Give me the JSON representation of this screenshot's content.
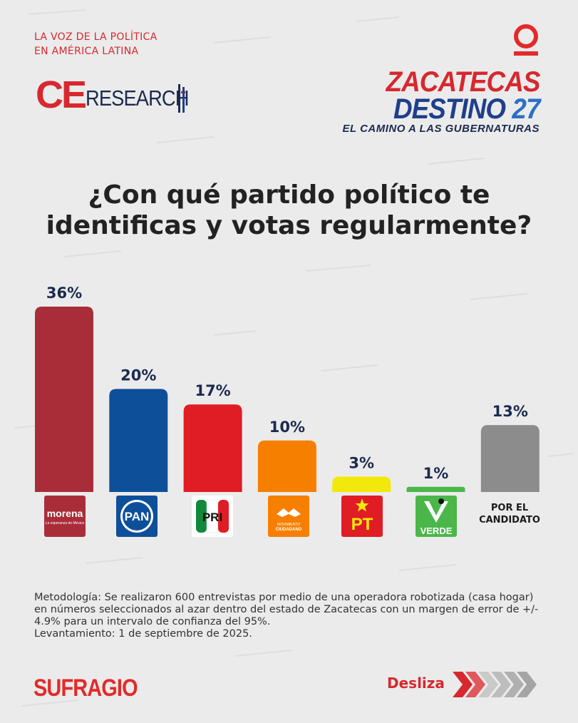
{
  "header": {
    "tagline_line1": "LA VOZ DE LA POLÍTICA",
    "tagline_line2": "EN AMÉRICA LATINA",
    "ce_logo_part1": "CE",
    "ce_logo_part2": "RESEARCH",
    "zacatecas_line1": "ZACATECAS",
    "zacatecas_line2": "DESTINO",
    "zacatecas_number": "27",
    "zacatecas_line3": "EL CAMINO A LAS GUBERNATURAS"
  },
  "question": {
    "line1": "¿Con qué partido político te",
    "line2": "identificas y votas regularmente?"
  },
  "chart_data": {
    "type": "bar",
    "title": "¿Con qué partido político te identificas y votas regularmente?",
    "categories": [
      "morena",
      "PAN",
      "PRI",
      "Movimiento Ciudadano",
      "PT",
      "Verde",
      "Por el candidato"
    ],
    "values": [
      36,
      20,
      17,
      10,
      3,
      1,
      13
    ],
    "value_labels": [
      "36%",
      "20%",
      "17%",
      "10%",
      "3%",
      "1%",
      "13%"
    ],
    "colors": [
      "#a92d39",
      "#0e4f9a",
      "#e01c24",
      "#f77f00",
      "#f2e80b",
      "#4bb74a",
      "#8c8c8c"
    ],
    "xlabel": "",
    "ylabel": "",
    "ylim": [
      0,
      36
    ],
    "grid": false,
    "legend": "none"
  },
  "party_logos": {
    "morena_text": "morena",
    "morena_sub": "La esperanza de México",
    "pan_text": "PAN",
    "pri_text": "PRI",
    "mc_text1": "MOVIMIENTO",
    "mc_text2": "CIUDADANO",
    "pt_text": "PT",
    "verde_text": "VERDE",
    "candidate_line1": "POR EL",
    "candidate_line2": "CANDIDATO"
  },
  "methodology": {
    "text": "Metodología: Se realizaron 600 entrevistas por medio de una operadora robotizada (casa hogar) en números seleccionados al azar dentro del estado de Zacatecas con un margen de error de +/- 4.9% para un intervalo de confianza del 95%.",
    "date": "Levantamiento: 1 de septiembre de 2025."
  },
  "footer": {
    "brand": "SUFRAGIO",
    "swipe_label": "Desliza"
  }
}
